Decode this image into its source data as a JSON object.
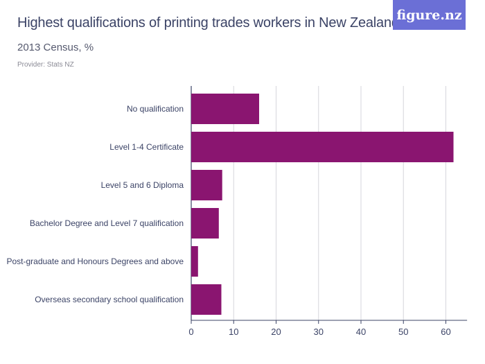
{
  "header": {
    "title": "Highest qualifications of printing trades workers in New Zealand",
    "subtitle": "2013 Census, %",
    "provider": "Provider: Stats NZ"
  },
  "logo": {
    "text": "figure.nz",
    "color": "#6b6fd6"
  },
  "chart_data": {
    "type": "bar",
    "orientation": "horizontal",
    "title": "Highest qualifications of printing trades workers in New Zealand",
    "subtitle": "2013 Census, %",
    "xlabel": "",
    "ylabel": "",
    "categories": [
      "No qualification",
      "Level 1-4 Certificate",
      "Level 5 and 6 Diploma",
      "Bachelor Degree and Level 7 qualification",
      "Post-graduate and Honours Degrees and above",
      "Overseas secondary school qualification"
    ],
    "values": [
      16.0,
      61.8,
      7.3,
      6.5,
      1.6,
      7.1
    ],
    "xlim": [
      0,
      65
    ],
    "xticks": [
      0,
      10,
      20,
      30,
      40,
      50,
      60
    ],
    "grid": true,
    "bar_color": "#8a1570"
  }
}
